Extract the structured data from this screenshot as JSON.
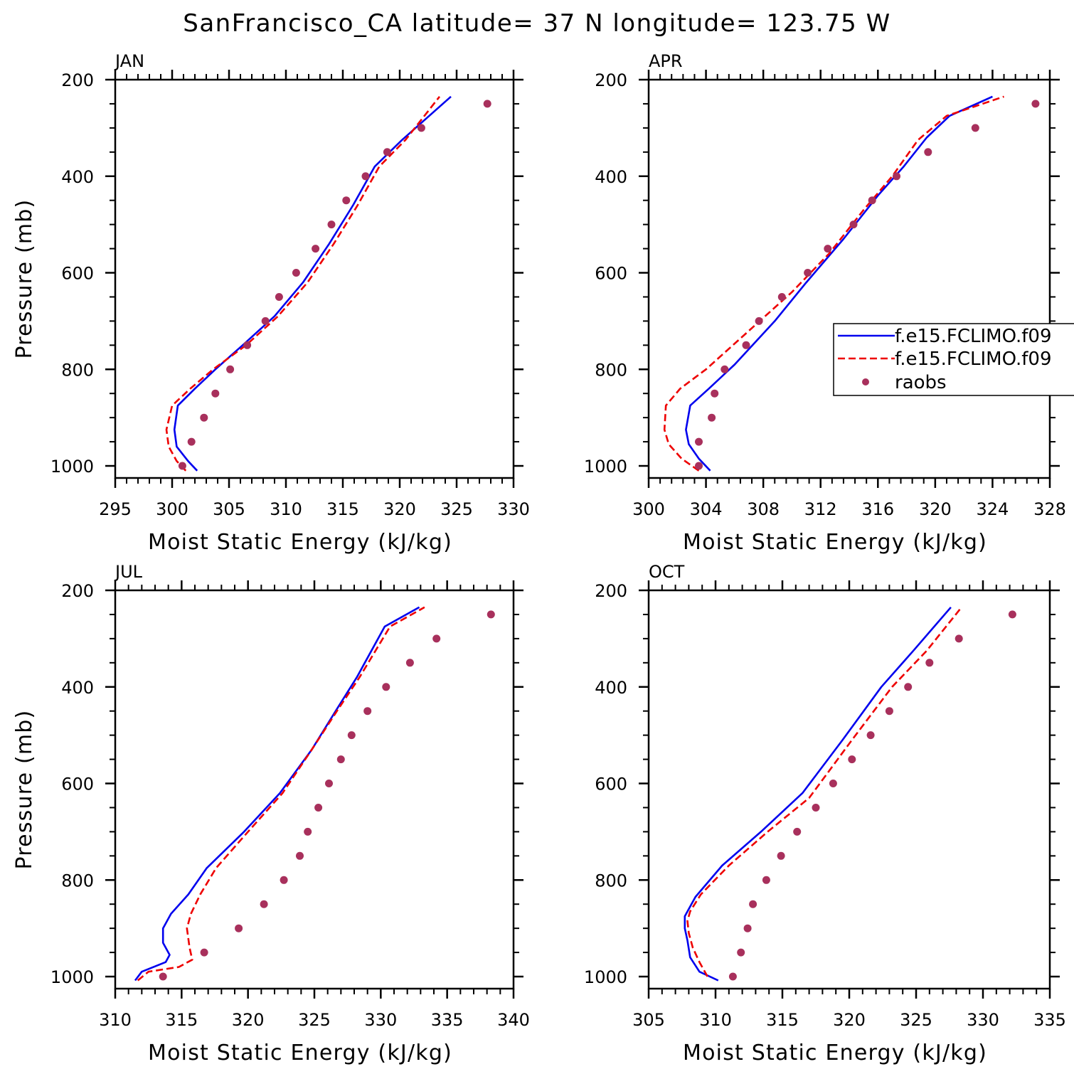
{
  "title": "SanFrancisco_CA  latitude= 37 N longitude= 123.75 W",
  "colors": {
    "model1": "#0000ee",
    "model2": "#ee0000",
    "obs": "#a8305c",
    "axis": "#000000"
  },
  "legend": {
    "entries": [
      {
        "label": "f.e15.FCLIMO.f09",
        "style": "solid",
        "color": "#0000ee"
      },
      {
        "label": "f.e15.FCLIMO.f09",
        "style": "dashed",
        "color": "#ee0000"
      },
      {
        "label": "raobs",
        "style": "marker",
        "color": "#a8305c"
      }
    ]
  },
  "chart_data": [
    {
      "type": "line",
      "month": "JAN",
      "xlabel": "Moist Static Energy (kJ/kg)",
      "ylabel": "Pressure (mb)",
      "xlim": [
        295,
        330
      ],
      "ylim": [
        1025,
        200
      ],
      "xticks": [
        295,
        300,
        305,
        310,
        315,
        320,
        325,
        330
      ],
      "yticks": [
        200,
        400,
        600,
        800,
        1000
      ],
      "series": [
        {
          "name": "f.e15.FCLIMO.f09 (solid)",
          "x": [
            302.2,
            301.4,
            300.4,
            300.2,
            300.5,
            302.0,
            303.8,
            306.2,
            309.0,
            311.5,
            313.8,
            315.9,
            317.8,
            320.2,
            324.5
          ],
          "y": [
            1010,
            990,
            960,
            925,
            875,
            840,
            800,
            750,
            690,
            620,
            540,
            460,
            380,
            325,
            235
          ]
        },
        {
          "name": "f.e15.FCLIMO.f09 (dashed)",
          "x": [
            301.2,
            300.4,
            299.7,
            299.5,
            300.0,
            301.6,
            303.6,
            306.5,
            309.3,
            311.9,
            314.2,
            316.3,
            318.2,
            320.5,
            323.5
          ],
          "y": [
            1010,
            990,
            960,
            925,
            875,
            840,
            800,
            750,
            690,
            620,
            540,
            460,
            380,
            325,
            235
          ]
        },
        {
          "name": "raobs",
          "x": [
            300.9,
            301.7,
            302.8,
            303.8,
            305.1,
            306.6,
            308.2,
            309.4,
            310.9,
            312.6,
            314.0,
            315.3,
            317.0,
            318.9,
            321.9,
            327.7
          ],
          "y": [
            1000,
            950,
            900,
            850,
            800,
            750,
            700,
            650,
            600,
            550,
            500,
            450,
            400,
            350,
            300,
            250
          ]
        }
      ]
    },
    {
      "type": "line",
      "month": "APR",
      "xlabel": "Moist Static Energy (kJ/kg)",
      "ylabel": "",
      "xlim": [
        300,
        328
      ],
      "ylim": [
        1025,
        200
      ],
      "xticks": [
        300,
        304,
        308,
        312,
        316,
        320,
        324,
        328
      ],
      "yticks": [
        200,
        400,
        600,
        800,
        1000
      ],
      "series": [
        {
          "name": "f.e15.FCLIMO.f09 (solid)",
          "x": [
            304.3,
            303.5,
            302.8,
            302.6,
            302.9,
            304.2,
            306.0,
            308.8,
            311.0,
            313.6,
            316.0,
            317.8,
            319.4,
            321.0,
            324.0
          ],
          "y": [
            1010,
            985,
            955,
            925,
            875,
            840,
            790,
            700,
            620,
            530,
            440,
            380,
            320,
            275,
            235
          ]
        },
        {
          "name": "f.e15.FCLIMO.f09 (dashed)",
          "x": [
            303.5,
            302.3,
            301.4,
            301.1,
            301.2,
            302.2,
            304.0,
            307.0,
            310.0,
            312.6,
            315.0,
            317.0,
            318.8,
            320.8,
            324.8
          ],
          "y": [
            1010,
            985,
            955,
            925,
            875,
            840,
            800,
            720,
            640,
            560,
            470,
            400,
            325,
            275,
            235
          ]
        },
        {
          "name": "raobs",
          "x": [
            303.5,
            303.5,
            304.4,
            304.6,
            305.3,
            306.8,
            307.7,
            309.3,
            311.1,
            312.5,
            314.3,
            315.6,
            317.3,
            319.5,
            322.8,
            327.0
          ],
          "y": [
            1000,
            950,
            900,
            850,
            800,
            750,
            700,
            650,
            600,
            550,
            500,
            450,
            400,
            350,
            300,
            250
          ]
        }
      ]
    },
    {
      "type": "line",
      "month": "JUL",
      "xlabel": "Moist Static Energy (kJ/kg)",
      "ylabel": "Pressure (mb)",
      "xlim": [
        310,
        340
      ],
      "ylim": [
        1025,
        200
      ],
      "xticks": [
        310,
        315,
        320,
        325,
        330,
        335,
        340
      ],
      "yticks": [
        200,
        400,
        600,
        800,
        1000
      ],
      "series": [
        {
          "name": "f.e15.FCLIMO.f09 (solid)",
          "x": [
            311.5,
            312.0,
            313.8,
            314.1,
            313.6,
            313.6,
            314.2,
            315.5,
            316.9,
            319.7,
            322.4,
            324.8,
            326.6,
            328.2,
            330.3,
            332.9
          ],
          "y": [
            1008,
            990,
            970,
            955,
            930,
            900,
            870,
            830,
            775,
            700,
            620,
            530,
            450,
            380,
            275,
            235
          ]
        },
        {
          "name": "f.e15.FCLIMO.f09 (dashed)",
          "x": [
            311.7,
            312.5,
            314.8,
            315.8,
            315.6,
            315.4,
            315.7,
            316.4,
            317.6,
            320.0,
            322.6,
            324.8,
            326.7,
            328.4,
            330.7,
            333.3
          ],
          "y": [
            1008,
            990,
            980,
            965,
            940,
            900,
            870,
            830,
            775,
            700,
            620,
            530,
            450,
            380,
            275,
            235
          ]
        },
        {
          "name": "raobs",
          "x": [
            313.6,
            316.7,
            319.3,
            321.2,
            322.7,
            323.9,
            324.5,
            325.3,
            326.1,
            327.0,
            327.8,
            329.0,
            330.4,
            332.2,
            334.2,
            338.3
          ],
          "y": [
            1000,
            950,
            900,
            850,
            800,
            750,
            700,
            650,
            600,
            550,
            500,
            450,
            400,
            350,
            300,
            250
          ]
        }
      ]
    },
    {
      "type": "line",
      "month": "OCT",
      "xlabel": "Moist Static Energy (kJ/kg)",
      "ylabel": "",
      "xlim": [
        305,
        335
      ],
      "ylim": [
        1025,
        200
      ],
      "xticks": [
        305,
        310,
        315,
        320,
        325,
        330,
        335
      ],
      "yticks": [
        200,
        400,
        600,
        800,
        1000
      ],
      "series": [
        {
          "name": "f.e15.FCLIMO.f09 (solid)",
          "x": [
            310.2,
            308.8,
            308.1,
            307.9,
            307.7,
            307.7,
            308.5,
            310.5,
            313.4,
            316.5,
            319.5,
            322.4,
            324.8,
            327.6
          ],
          "y": [
            1008,
            990,
            960,
            925,
            900,
            875,
            835,
            770,
            700,
            620,
            510,
            400,
            325,
            235
          ]
        },
        {
          "name": "f.e15.FCLIMO.f09 (dashed)",
          "x": [
            309.4,
            308.8,
            308.3,
            308.0,
            307.9,
            308.1,
            308.9,
            311.0,
            313.9,
            317.0,
            320.2,
            323.2,
            325.8,
            328.4
          ],
          "y": [
            1000,
            970,
            940,
            910,
            885,
            865,
            830,
            770,
            700,
            630,
            510,
            400,
            325,
            235
          ]
        },
        {
          "name": "raobs",
          "x": [
            311.3,
            311.9,
            312.4,
            312.8,
            313.8,
            314.9,
            316.1,
            317.5,
            318.8,
            320.2,
            321.6,
            323.0,
            324.4,
            326.0,
            328.2,
            332.2
          ],
          "y": [
            1000,
            950,
            900,
            850,
            800,
            750,
            700,
            650,
            600,
            550,
            500,
            450,
            400,
            350,
            300,
            250
          ]
        }
      ]
    }
  ]
}
